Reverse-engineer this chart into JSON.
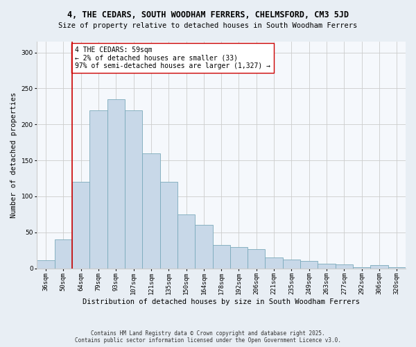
{
  "title": "4, THE CEDARS, SOUTH WOODHAM FERRERS, CHELMSFORD, CM3 5JD",
  "subtitle": "Size of property relative to detached houses in South Woodham Ferrers",
  "xlabel": "Distribution of detached houses by size in South Woodham Ferrers",
  "ylabel": "Number of detached properties",
  "categories": [
    "36sqm",
    "50sqm",
    "64sqm",
    "79sqm",
    "93sqm",
    "107sqm",
    "121sqm",
    "135sqm",
    "150sqm",
    "164sqm",
    "178sqm",
    "192sqm",
    "206sqm",
    "221sqm",
    "235sqm",
    "249sqm",
    "263sqm",
    "277sqm",
    "292sqm",
    "306sqm",
    "320sqm"
  ],
  "values": [
    11,
    40,
    120,
    220,
    235,
    220,
    160,
    120,
    75,
    60,
    32,
    30,
    27,
    15,
    12,
    10,
    6,
    5,
    2,
    4,
    2
  ],
  "bar_color": "#c8d8e8",
  "bar_edge_color": "#7aaabb",
  "vline_x": 1.5,
  "vline_color": "#cc0000",
  "annotation_text": "4 THE CEDARS: 59sqm\n← 2% of detached houses are smaller (33)\n97% of semi-detached houses are larger (1,327) →",
  "annotation_box_color": "#ffffff",
  "annotation_box_edge": "#cc0000",
  "ylim": [
    0,
    315
  ],
  "yticks": [
    0,
    50,
    100,
    150,
    200,
    250,
    300
  ],
  "footer": "Contains HM Land Registry data © Crown copyright and database right 2025.\nContains public sector information licensed under the Open Government Licence v3.0.",
  "bg_color": "#e8eef4",
  "plot_bg_color": "#f5f8fc",
  "grid_color": "#cccccc",
  "title_fontsize": 8.5,
  "subtitle_fontsize": 7.5,
  "tick_fontsize": 6.5,
  "label_fontsize": 7.5,
  "footer_fontsize": 5.5,
  "annotation_fontsize": 7.0
}
